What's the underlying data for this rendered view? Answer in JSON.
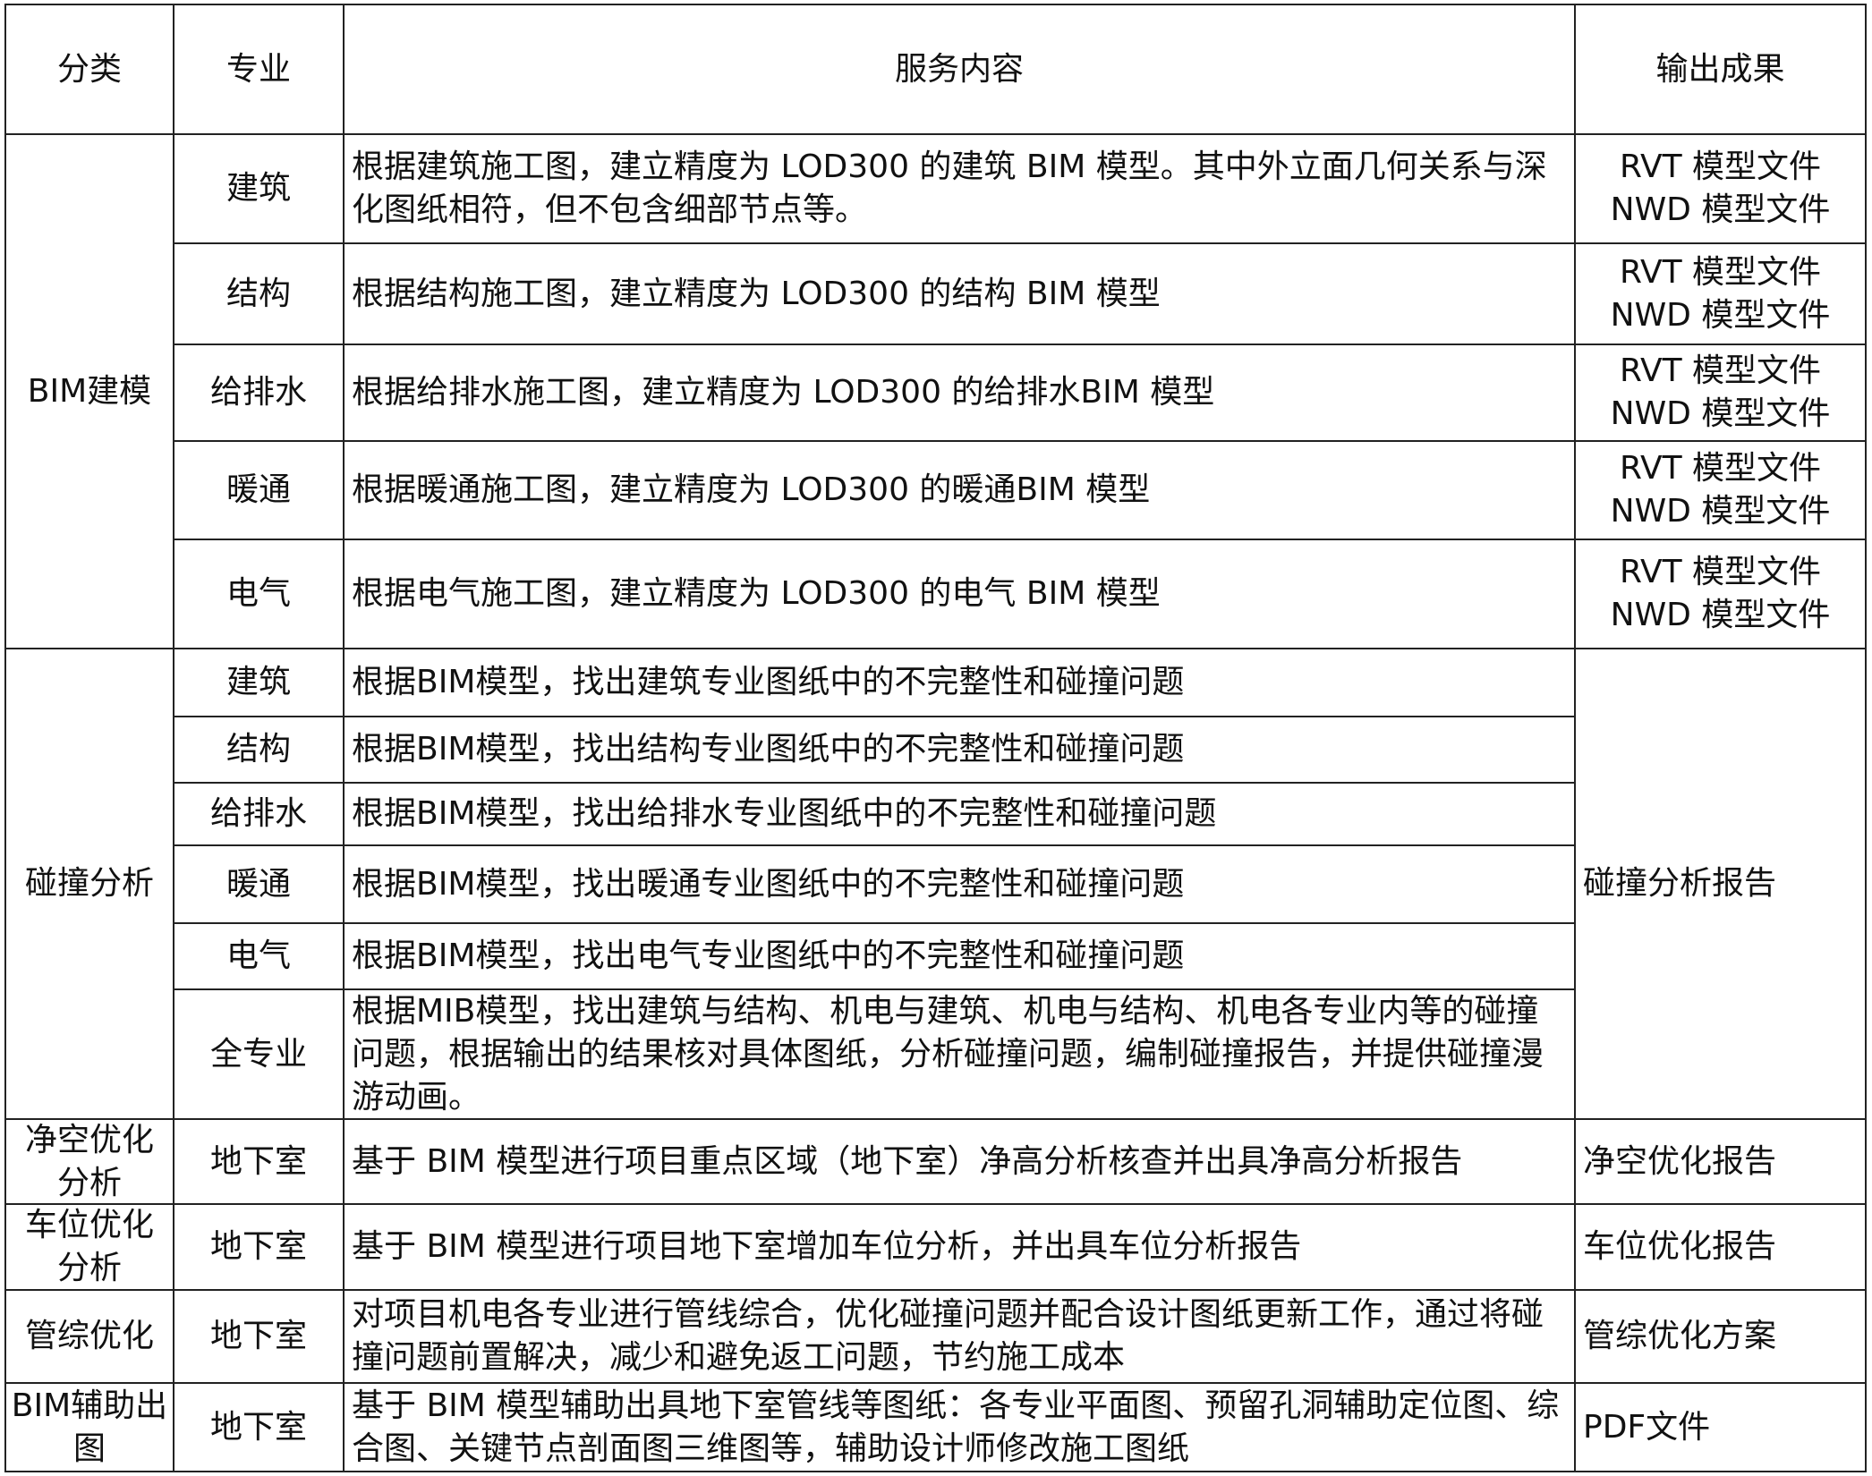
{
  "header": {
    "category": "分类",
    "discipline": "专业",
    "content": "服务内容",
    "output": "输出成果"
  },
  "groups": [
    {
      "category": "BIM建模",
      "items": [
        {
          "discipline": "建筑",
          "content": "根据建筑施工图，建立精度为 LOD300 的建筑 BIM 模型。其中外立面几何关系与深化图纸相符，但不包含细部节点等。",
          "outputs": [
            "RVT 模型文件",
            "NWD 模型文件"
          ]
        },
        {
          "discipline": "结构",
          "content": "根据结构施工图，建立精度为 LOD300 的结构 BIM 模型",
          "outputs": [
            "RVT 模型文件",
            "NWD 模型文件"
          ]
        },
        {
          "discipline": "给排水",
          "content": "根据给排水施工图，建立精度为 LOD300 的给排水BIM 模型",
          "outputs": [
            "RVT 模型文件",
            "NWD 模型文件"
          ]
        },
        {
          "discipline": "暖通",
          "content": "根据暖通施工图，建立精度为 LOD300 的暖通BIM 模型",
          "outputs": [
            "RVT 模型文件",
            "NWD 模型文件"
          ]
        },
        {
          "discipline": "电气",
          "content": "根据电气施工图，建立精度为 LOD300 的电气 BIM 模型",
          "outputs": [
            "RVT 模型文件",
            "NWD 模型文件"
          ]
        }
      ]
    },
    {
      "category": "碰撞分析",
      "output": "碰撞分析报告",
      "items": [
        {
          "discipline": "建筑",
          "content": "根据BIM模型，找出建筑专业图纸中的不完整性和碰撞问题"
        },
        {
          "discipline": "结构",
          "content": "根据BIM模型，找出结构专业图纸中的不完整性和碰撞问题"
        },
        {
          "discipline": "给排水",
          "content": "根据BIM模型，找出给排水专业图纸中的不完整性和碰撞问题"
        },
        {
          "discipline": "暖通",
          "content": "根据BIM模型，找出暖通专业图纸中的不完整性和碰撞问题"
        },
        {
          "discipline": "电气",
          "content": "根据BIM模型，找出电气专业图纸中的不完整性和碰撞问题"
        },
        {
          "discipline": "全专业",
          "content": "根据MIB模型，找出建筑与结构、机电与建筑、机电与结构、机电各专业内等的碰撞问题，根据输出的结果核对具体图纸，分析碰撞问题，编制碰撞报告，并提供碰撞漫游动画。"
        }
      ]
    },
    {
      "category": "净空优化分析",
      "output": "净空优化报告",
      "items": [
        {
          "discipline": "地下室",
          "content": "基于 BIM 模型进行项目重点区域（地下室）净高分析核查并出具净高分析报告"
        }
      ]
    },
    {
      "category": "车位优化分析",
      "output": "车位优化报告",
      "items": [
        {
          "discipline": "地下室",
          "content": "基于 BIM 模型进行项目地下室增加车位分析，并出具车位分析报告"
        }
      ]
    },
    {
      "category": "管综优化",
      "output": "管综优化方案",
      "items": [
        {
          "discipline": "地下室",
          "content": "对项目机电各专业进行管线综合，优化碰撞问题并配合设计图纸更新工作，通过将碰撞问题前置解决，减少和避免返工问题，节约施工成本"
        }
      ]
    },
    {
      "category": "BIM辅助出图",
      "output": "PDF文件",
      "items": [
        {
          "discipline": "地下室",
          "content": "基于 BIM 模型辅助出具地下室管线等图纸：各专业平面图、预留孔洞辅助定位图、综合图、关键节点剖面图三维图等，辅助设计师修改施工图纸"
        }
      ]
    }
  ]
}
